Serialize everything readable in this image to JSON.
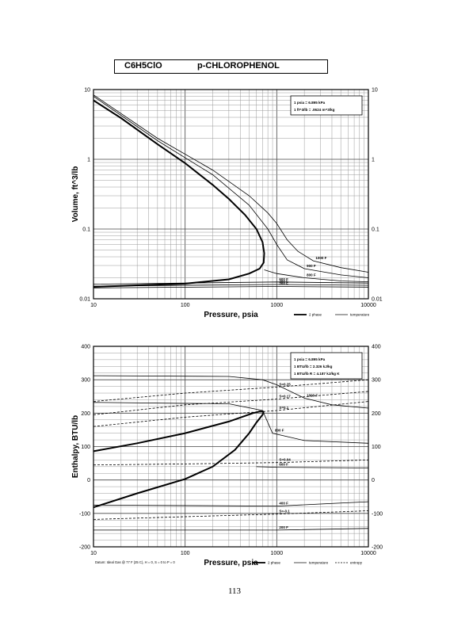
{
  "header": {
    "formula": "C6H5ClO",
    "compound": "p-CHLOROPHENOL"
  },
  "page_number": "113",
  "chart_data": [
    {
      "type": "line",
      "xlabel": "Pressure,  psia",
      "ylabel": "Volume, ft^3/lb",
      "x_scale": "log",
      "y_scale": "log",
      "xlim": [
        10,
        10000
      ],
      "ylim": [
        0.01,
        10
      ],
      "x_tick_labels": [
        "10",
        "100",
        "1000",
        "10000"
      ],
      "y_tick_labels": [
        "0.01",
        "0.1",
        "1",
        "10"
      ],
      "grid": true,
      "conversion_box": [
        "1 psia = 6.895 kPa",
        "1 ft^3/lb = .0624 m^3/kg"
      ],
      "legend": [
        "2 phase",
        "temperature"
      ],
      "legend_position": "bottom-right",
      "series": [
        {
          "name": "2 phase",
          "style": "thick",
          "points": [
            [
              10,
              7.0
            ],
            [
              20,
              3.9
            ],
            [
              50,
              1.65
            ],
            [
              100,
              0.88
            ],
            [
              200,
              0.43
            ],
            [
              300,
              0.27
            ],
            [
              450,
              0.16
            ],
            [
              600,
              0.1
            ],
            [
              700,
              0.065
            ],
            [
              730,
              0.045
            ],
            [
              720,
              0.033
            ],
            [
              650,
              0.027
            ],
            [
              500,
              0.023
            ],
            [
              300,
              0.019
            ],
            [
              100,
              0.0165
            ],
            [
              10,
              0.0148
            ]
          ]
        },
        {
          "name": "1000 F",
          "label": "1000 F",
          "points": [
            [
              10,
              8.4
            ],
            [
              50,
              2.0
            ],
            [
              200,
              0.7
            ],
            [
              500,
              0.3
            ],
            [
              800,
              0.17
            ],
            [
              1000,
              0.12
            ],
            [
              1300,
              0.07
            ],
            [
              1700,
              0.048
            ],
            [
              2500,
              0.035
            ],
            [
              5000,
              0.028
            ],
            [
              10000,
              0.024
            ]
          ]
        },
        {
          "name": "900 F",
          "label": "900 F",
          "points": [
            [
              10,
              8.0
            ],
            [
              50,
              1.85
            ],
            [
              200,
              0.6
            ],
            [
              500,
              0.22
            ],
            [
              800,
              0.1
            ],
            [
              1000,
              0.06
            ],
            [
              1300,
              0.036
            ],
            [
              2000,
              0.027
            ],
            [
              5000,
              0.022
            ],
            [
              10000,
              0.02
            ]
          ]
        },
        {
          "name": "800 F",
          "label": "800 F",
          "points": [
            [
              730,
              0.026
            ],
            [
              1000,
              0.023
            ],
            [
              2000,
              0.02
            ],
            [
              5000,
              0.018
            ],
            [
              10000,
              0.0175
            ]
          ]
        },
        {
          "name": "600 F",
          "label": "600 F",
          "points": [
            [
              10,
              0.0162
            ],
            [
              1000,
              0.0174
            ],
            [
              10000,
              0.0168
            ]
          ]
        },
        {
          "name": "400 F",
          "label": "400 F",
          "points": [
            [
              10,
              0.0152
            ],
            [
              1000,
              0.016
            ],
            [
              10000,
              0.0156
            ]
          ]
        },
        {
          "name": "200 F",
          "label": "200 F",
          "points": [
            [
              10,
              0.0143
            ],
            [
              1000,
              0.015
            ],
            [
              10000,
              0.0147
            ]
          ]
        }
      ]
    },
    {
      "type": "line",
      "xlabel": "Pressure,  psia",
      "ylabel": "Enthalpy, BTU/lb",
      "x_scale": "log",
      "xlim": [
        10,
        10000
      ],
      "ylim": [
        -200,
        400
      ],
      "x_tick_labels": [
        "10",
        "100",
        "1000",
        "10000"
      ],
      "y_tick_labels": [
        "-200",
        "-100",
        "0",
        "100",
        "200",
        "300",
        "400"
      ],
      "grid": true,
      "conversion_box": [
        "1 psia = 6.895 kPa",
        "1 BTU/lb = 2.326 kJ/kg",
        "1 BTU/lb R = 4.187 kJ/kg K"
      ],
      "footnote": "Datum: Ideal Gas @ 77 F (25 C),  H = 0,  S = 0 to P = 0",
      "legend": [
        "2 phase",
        "temperature",
        "entropy"
      ],
      "legend_position": "bottom-right",
      "series": [
        {
          "name": "2 phase (vapor)",
          "style": "thick",
          "points": [
            [
              10,
              86
            ],
            [
              30,
              110
            ],
            [
              100,
              140
            ],
            [
              300,
              175
            ],
            [
              550,
              200
            ],
            [
              650,
              205
            ],
            [
              720,
              205
            ]
          ]
        },
        {
          "name": "2 phase (liquid)",
          "style": "thick",
          "points": [
            [
              10,
              -82
            ],
            [
              30,
              -40
            ],
            [
              100,
              3
            ],
            [
              200,
              40
            ],
            [
              350,
              90
            ],
            [
              500,
              140
            ],
            [
              600,
              172
            ],
            [
              700,
              195
            ],
            [
              720,
              205
            ]
          ]
        },
        {
          "name": "1000 F",
          "label": "1000 F",
          "points": [
            [
              10,
              312
            ],
            [
              300,
              310
            ],
            [
              700,
              300
            ],
            [
              1000,
              285
            ],
            [
              2000,
              245
            ],
            [
              4000,
              225
            ],
            [
              10000,
              215
            ]
          ]
        },
        {
          "name": "800 F",
          "label": "800 F",
          "points": [
            [
              10,
              232
            ],
            [
              300,
              228
            ],
            [
              700,
              208
            ],
            [
              900,
              140
            ],
            [
              2000,
              118
            ],
            [
              10000,
              110
            ]
          ]
        },
        {
          "name": "600 F",
          "label": "600 F",
          "points": [
            [
              600,
              40
            ],
            [
              1000,
              38
            ],
            [
              10000,
              36
            ]
          ]
        },
        {
          "name": "400 F",
          "label": "400 F",
          "points": [
            [
              10,
              -75
            ],
            [
              1000,
              -78
            ],
            [
              10000,
              -65
            ]
          ]
        },
        {
          "name": "200 F",
          "label": "200 F",
          "points": [
            [
              10,
              -150
            ],
            [
              1000,
              -150
            ],
            [
              10000,
              -145
            ]
          ]
        },
        {
          "name": "S=0.25",
          "label": "S=0.25",
          "style": "dashed",
          "points": [
            [
              10,
              235
            ],
            [
              100,
              260
            ],
            [
              1000,
              278
            ],
            [
              10000,
              300
            ]
          ]
        },
        {
          "name": "S=0.17",
          "label": "S=0.17",
          "style": "dashed",
          "points": [
            [
              10,
              195
            ],
            [
              100,
              225
            ],
            [
              1000,
              242
            ],
            [
              10000,
              265
            ]
          ]
        },
        {
          "name": "S=0.1",
          "label": "S=0.1",
          "style": "dashed",
          "points": [
            [
              10,
              160
            ],
            [
              100,
              188
            ],
            [
              1000,
              208
            ],
            [
              10000,
              235
            ]
          ]
        },
        {
          "name": "S=0.04",
          "label": "S=0.04",
          "style": "dashed",
          "points": [
            [
              10,
              45
            ],
            [
              100,
              48
            ],
            [
              1000,
              52
            ],
            [
              10000,
              60
            ]
          ]
        },
        {
          "name": "S=-0.1",
          "label": "S=-0.1",
          "style": "dashed",
          "points": [
            [
              10,
              -118
            ],
            [
              100,
              -110
            ],
            [
              1000,
              -102
            ],
            [
              10000,
              -92
            ]
          ]
        }
      ]
    }
  ]
}
